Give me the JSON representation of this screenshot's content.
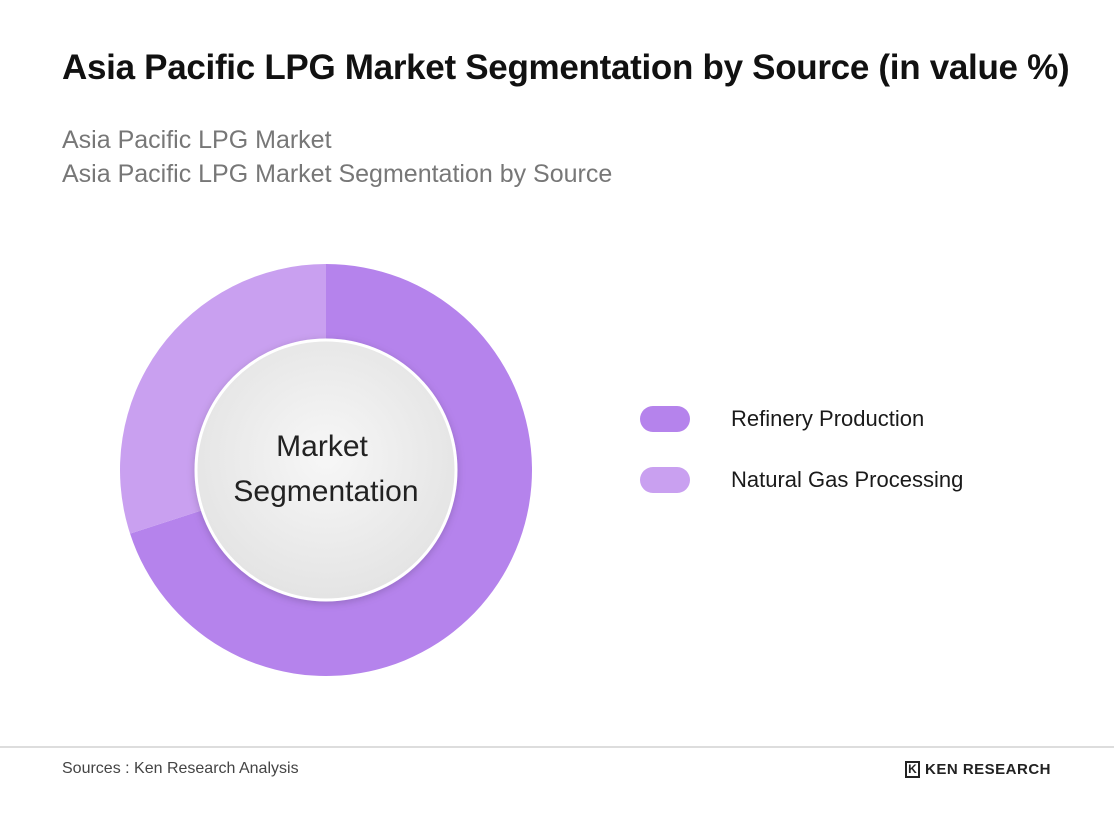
{
  "chart_data": {
    "type": "pie",
    "title": "Asia Pacific LPG Market Segmentation by Source (in value %)",
    "subtitle": [
      "Asia Pacific LPG Market",
      "Asia Pacific LPG Market Segmentation by Source"
    ],
    "center_label": [
      "Market",
      "Segmentation"
    ],
    "categories": [
      "Refinery Production",
      "Natural Gas Processing"
    ],
    "values": [
      70,
      30
    ],
    "colors": [
      "#b583ec",
      "#c9a0f0"
    ],
    "legend_position": "right"
  },
  "footer": {
    "sources": "Sources : Ken Research Analysis",
    "brand_mark": "K",
    "brand": "KEN RESEARCH"
  }
}
